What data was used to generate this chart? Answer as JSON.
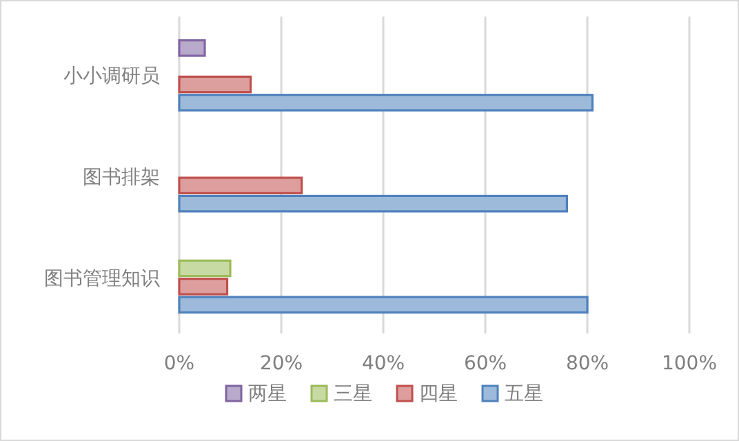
{
  "chart_data": {
    "type": "bar",
    "orientation": "horizontal",
    "categories": [
      "小小调研员",
      "图书排架",
      "图书管理知识"
    ],
    "series": [
      {
        "name": "两星",
        "color": "#8064a2",
        "values": [
          5,
          null,
          null
        ]
      },
      {
        "name": "三星",
        "color": "#9bbb59",
        "values": [
          null,
          null,
          10
        ]
      },
      {
        "name": "四星",
        "color": "#c0504d",
        "values": [
          14,
          24,
          9.4
        ]
      },
      {
        "name": "五星",
        "color": "#4f81bd",
        "values": [
          81,
          76,
          80
        ]
      }
    ],
    "xlim": [
      0,
      100
    ],
    "xticks": [
      {
        "value": 0,
        "label": "0%"
      },
      {
        "value": 20,
        "label": "20%"
      },
      {
        "value": 40,
        "label": "40%"
      },
      {
        "value": 60,
        "label": "60%"
      },
      {
        "value": 80,
        "label": "80%"
      },
      {
        "value": 100,
        "label": "100%"
      }
    ],
    "grid": "x",
    "legend": "bottom"
  }
}
